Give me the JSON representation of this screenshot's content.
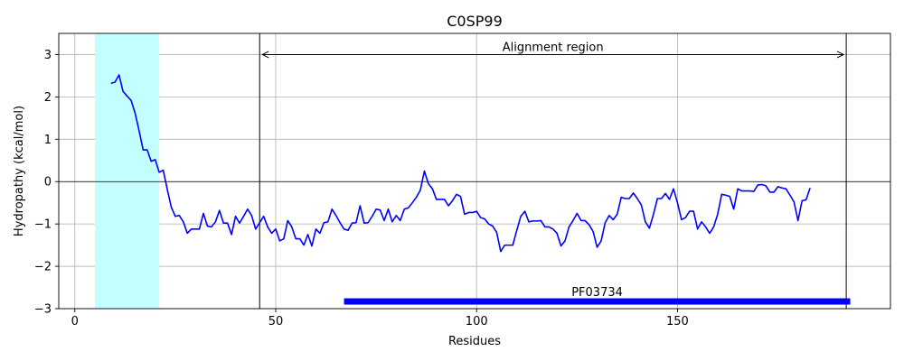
{
  "chart_data": {
    "type": "line",
    "title": "C0SP99",
    "xlabel": "Residues",
    "ylabel": "Hydropathy (kcal/mol)",
    "xlim": [
      -4,
      203
    ],
    "ylim": [
      -3,
      3.5
    ],
    "xticks": [
      0,
      50,
      100,
      150
    ],
    "yticks": [
      -3,
      -2,
      -1,
      0,
      1,
      2,
      3
    ],
    "grid": true,
    "series": [
      {
        "color": "#0000ff",
        "x": [
          9,
          10,
          11,
          12,
          13,
          14,
          15,
          16,
          17,
          18,
          19,
          20,
          21,
          22,
          23,
          24,
          25,
          26,
          27,
          28,
          29,
          30,
          31,
          32,
          33,
          34,
          35,
          36,
          37,
          38,
          39,
          40,
          41,
          42,
          43,
          44,
          45,
          46,
          47,
          48,
          49,
          50,
          51,
          52,
          53,
          54,
          55,
          56,
          57,
          58,
          59,
          60,
          61,
          62,
          63,
          64,
          65,
          66,
          67,
          68,
          69,
          70,
          71,
          72,
          73,
          74,
          75,
          76,
          77,
          78,
          79,
          80,
          81,
          82,
          83,
          84,
          85,
          86,
          87,
          88,
          89,
          90,
          91,
          92,
          93,
          94,
          95,
          96,
          97,
          98,
          99,
          100,
          101,
          102,
          103,
          104,
          105,
          106,
          107,
          108,
          109,
          110,
          111,
          112,
          113,
          114,
          115,
          116,
          117,
          118,
          119,
          120,
          121,
          122,
          123,
          124,
          125,
          126,
          127,
          128,
          129,
          130,
          131,
          132,
          133,
          134,
          135,
          136,
          137,
          138,
          139,
          140,
          141,
          142,
          143,
          144,
          145,
          146,
          147,
          148,
          149,
          150,
          151,
          152,
          153,
          154,
          155,
          156,
          157,
          158,
          159,
          160,
          161,
          162,
          163,
          164,
          165,
          166,
          167,
          168,
          169,
          170,
          171,
          172,
          173,
          174,
          175,
          176,
          177,
          178,
          179,
          180,
          181,
          182,
          183
        ],
        "y": [
          2.32,
          2.35,
          2.52,
          2.13,
          2.02,
          1.92,
          1.62,
          1.2,
          0.75,
          0.75,
          0.48,
          0.52,
          0.22,
          0.27,
          -0.18,
          -0.6,
          -0.82,
          -0.8,
          -0.95,
          -1.22,
          -1.12,
          -1.12,
          -1.12,
          -0.75,
          -1.05,
          -1.07,
          -0.95,
          -0.68,
          -0.98,
          -0.98,
          -1.25,
          -0.82,
          -0.98,
          -0.82,
          -0.65,
          -0.8,
          -1.12,
          -0.97,
          -0.82,
          -1.07,
          -1.22,
          -1.12,
          -1.4,
          -1.35,
          -0.92,
          -1.07,
          -1.35,
          -1.35,
          -1.5,
          -1.25,
          -1.52,
          -1.12,
          -1.22,
          -0.97,
          -0.95,
          -0.65,
          -0.8,
          -0.97,
          -1.12,
          -1.15,
          -0.98,
          -0.97,
          -0.57,
          -0.98,
          -0.97,
          -0.82,
          -0.65,
          -0.67,
          -0.92,
          -0.65,
          -0.95,
          -0.8,
          -0.92,
          -0.65,
          -0.62,
          -0.5,
          -0.37,
          -0.2,
          0.25,
          -0.05,
          -0.17,
          -0.42,
          -0.42,
          -0.42,
          -0.57,
          -0.45,
          -0.3,
          -0.35,
          -0.77,
          -0.73,
          -0.73,
          -0.7,
          -0.85,
          -0.88,
          -1.0,
          -1.05,
          -1.2,
          -1.65,
          -1.5,
          -1.5,
          -1.5,
          -1.15,
          -0.82,
          -0.7,
          -0.95,
          -0.93,
          -0.93,
          -0.92,
          -1.07,
          -1.07,
          -1.12,
          -1.22,
          -1.52,
          -1.4,
          -1.07,
          -0.92,
          -0.75,
          -0.92,
          -0.92,
          -1.02,
          -1.18,
          -1.55,
          -1.4,
          -0.97,
          -0.8,
          -0.9,
          -0.77,
          -0.37,
          -0.4,
          -0.4,
          -0.27,
          -0.4,
          -0.55,
          -0.95,
          -1.1,
          -0.78,
          -0.4,
          -0.4,
          -0.28,
          -0.42,
          -0.17,
          -0.5,
          -0.9,
          -0.85,
          -0.7,
          -0.7,
          -1.12,
          -0.95,
          -1.07,
          -1.22,
          -1.07,
          -0.77,
          -0.3,
          -0.32,
          -0.35,
          -0.65,
          -0.17,
          -0.22,
          -0.22,
          -0.22,
          -0.23,
          -0.08,
          -0.07,
          -0.1,
          -0.25,
          -0.25,
          -0.12,
          -0.15,
          -0.17,
          -0.32,
          -0.48,
          -0.92,
          -0.45,
          -0.43,
          -0.15
        ]
      }
    ],
    "shaded_region": {
      "x": [
        5,
        21
      ],
      "color": "#c4ffff"
    },
    "hline": {
      "y": 0,
      "color": "#000000"
    },
    "vlines": [
      46,
      192
    ],
    "alignment_arrow": {
      "x": [
        46,
        192
      ],
      "y": 3.0,
      "label": "Alignment region"
    },
    "domain_bar": {
      "x": [
        67,
        193
      ],
      "y": -2.83,
      "color": "#0000ff",
      "label": "PF03734"
    }
  }
}
